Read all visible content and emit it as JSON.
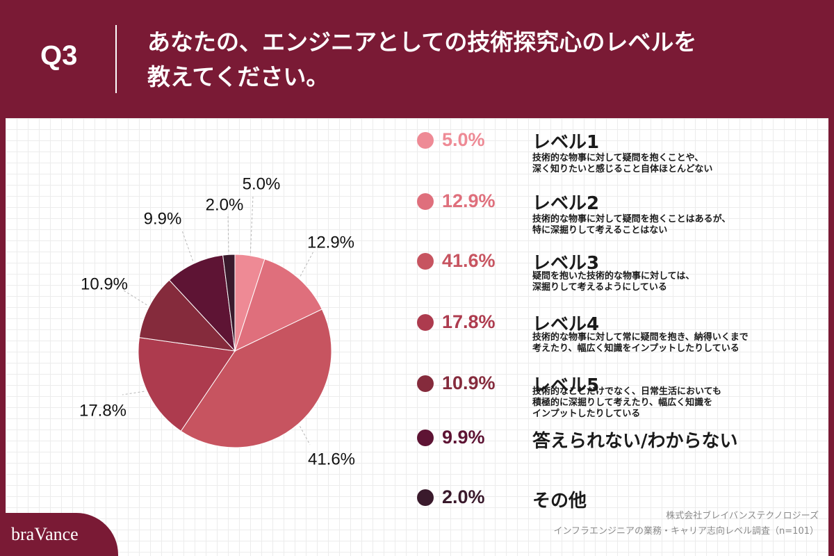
{
  "header": {
    "q_label": "Q3",
    "question_line1": "あなたの、エンジニアとしての技術探究心のレベルを",
    "question_line2": "教えてください。"
  },
  "legend": [
    {
      "pct": "5.0%",
      "name": "レベル1",
      "desc1": "技術的な物事に対して疑問を抱くことや、",
      "desc2": "深く知りたいと感じること自体ほとんどない",
      "desc3": "",
      "color": "#ee8a95"
    },
    {
      "pct": "12.9%",
      "name": "レベル2",
      "desc1": "技術的な物事に対して疑問を抱くことはあるが、",
      "desc2": "特に深掘りして考えることはない",
      "desc3": "",
      "color": "#df6f7c"
    },
    {
      "pct": "41.6%",
      "name": "レベル3",
      "desc1": "疑問を抱いた技術的な物事に対しては、",
      "desc2": "深掘りして考えるようにしている",
      "desc3": "",
      "color": "#c75460"
    },
    {
      "pct": "17.8%",
      "name": "レベル4",
      "desc1": "技術的な物事に対して常に疑問を抱き、納得いくまで",
      "desc2": "考えたり、幅広く知識をインプットしたりしている",
      "desc3": "",
      "color": "#ad3b4e"
    },
    {
      "pct": "10.9%",
      "name": "レベル5",
      "desc1": "技術的なことだけでなく、日常生活においても",
      "desc2": "積極的に深掘りして考えたり、幅広く知識を",
      "desc3": "インプットしたりしている",
      "color": "#852b3c"
    },
    {
      "pct": "9.9%",
      "name": "答えられない/わからない",
      "desc1": "",
      "desc2": "",
      "desc3": "",
      "color": "#5e1434"
    },
    {
      "pct": "2.0%",
      "name": "その他",
      "desc1": "",
      "desc2": "",
      "desc3": "",
      "color": "#3a1a2c"
    }
  ],
  "source": {
    "line1": "株式会社ブレイバンステクノロジーズ",
    "line2": "インフラエンジニアの業務・キャリア志向レベル調査（n=101）"
  },
  "logo": "braVance",
  "chart_data": {
    "type": "pie",
    "categories": [
      "レベル1",
      "レベル2",
      "レベル3",
      "レベル4",
      "レベル5",
      "答えられない/わからない",
      "その他"
    ],
    "values": [
      5.0,
      12.9,
      41.6,
      17.8,
      10.9,
      9.9,
      2.0
    ],
    "labels": [
      "5.0%",
      "12.9%",
      "41.6%",
      "17.8%",
      "10.9%",
      "9.9%",
      "2.0%"
    ],
    "colors": [
      "#ee8a95",
      "#df6f7c",
      "#c75460",
      "#ad3b4e",
      "#852b3c",
      "#5e1434",
      "#3a1a2c"
    ],
    "title": "あなたの、エンジニアとしての技術探究心のレベルを教えてください。"
  }
}
